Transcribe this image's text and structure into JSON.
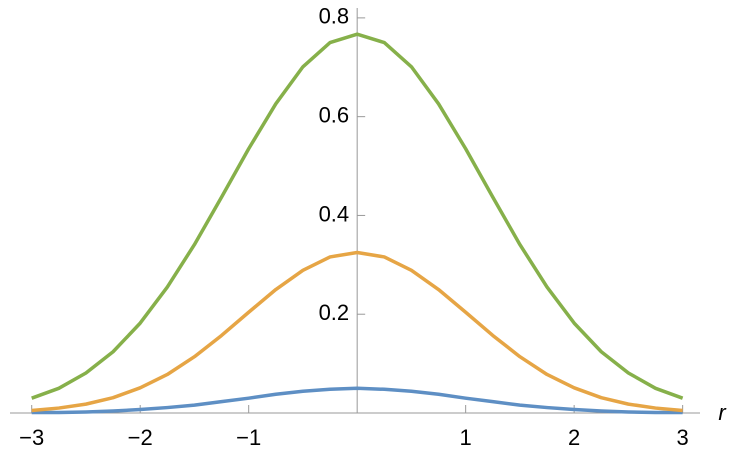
{
  "chart_data": {
    "type": "line",
    "x": [
      -3,
      -2.75,
      -2.5,
      -2.25,
      -2,
      -1.75,
      -1.5,
      -1.25,
      -1,
      -0.75,
      -0.5,
      -0.25,
      0,
      0.25,
      0.5,
      0.75,
      1,
      1.25,
      1.5,
      1.75,
      2,
      2.25,
      2.5,
      2.75,
      3
    ],
    "series": [
      {
        "color": "#5e8fc4",
        "values": [
          0.001,
          0.001,
          0.002,
          0.004,
          0.007,
          0.011,
          0.016,
          0.023,
          0.03,
          0.038,
          0.044,
          0.048,
          0.05,
          0.048,
          0.044,
          0.038,
          0.03,
          0.023,
          0.016,
          0.011,
          0.007,
          0.004,
          0.002,
          0.001,
          0.001
        ]
      },
      {
        "color": "#e6a545",
        "values": [
          0.005,
          0.01,
          0.018,
          0.031,
          0.051,
          0.078,
          0.114,
          0.157,
          0.204,
          0.25,
          0.289,
          0.316,
          0.325,
          0.316,
          0.289,
          0.25,
          0.204,
          0.157,
          0.114,
          0.078,
          0.051,
          0.031,
          0.018,
          0.01,
          0.005
        ]
      },
      {
        "color": "#86b04a",
        "values": [
          0.03,
          0.05,
          0.081,
          0.124,
          0.182,
          0.255,
          0.341,
          0.437,
          0.535,
          0.626,
          0.701,
          0.75,
          0.767,
          0.75,
          0.701,
          0.626,
          0.535,
          0.437,
          0.341,
          0.255,
          0.182,
          0.124,
          0.081,
          0.05,
          0.03
        ]
      }
    ],
    "xlabel": "r",
    "xlim": [
      -3.2,
      3.16
    ],
    "ylim": [
      0,
      0.82
    ],
    "xticks": [
      {
        "value": -3,
        "label": "−3"
      },
      {
        "value": -2,
        "label": "−2"
      },
      {
        "value": -1,
        "label": "−1"
      },
      1,
      2,
      3
    ],
    "yticks": [
      0.2,
      0.4,
      0.6,
      0.8
    ]
  }
}
